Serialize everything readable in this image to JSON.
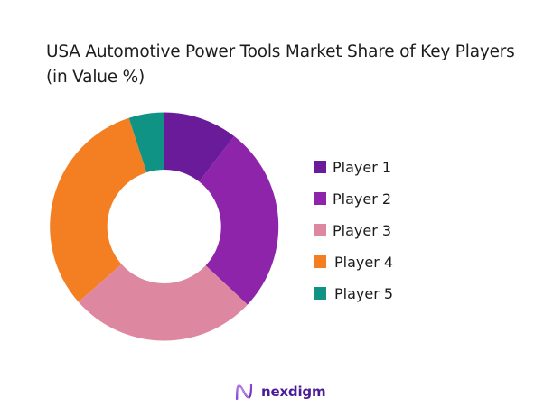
{
  "chart_data": {
    "type": "pie",
    "variant": "donut",
    "title": "USA Automotive Power Tools Market Share of Key Players (in Value %)",
    "categories": [
      "Player 1",
      "Player 2",
      "Player 3",
      "Player 4",
      "Player 5"
    ],
    "values": [
      10.5,
      26.5,
      26.5,
      31.5,
      5
    ],
    "unit": "%",
    "colors": [
      "#6A1B9A",
      "#8E24AA",
      "#DE87A0",
      "#F47F22",
      "#0E9384"
    ],
    "start_angle": "12 o'clock, clockwise",
    "legend_position": "right",
    "data_labels": false
  },
  "title": "USA Automotive Power Tools Market Share of Key Players (in Value %)",
  "legend": [
    {
      "label": "Player 1",
      "color": "#6A1B9A"
    },
    {
      "label": "Player 2",
      "color": "#8E24AA"
    },
    {
      "label": "Player 3",
      "color": "#DE87A0"
    },
    {
      "label": "Player 4",
      "color": "#F47F22"
    },
    {
      "label": "Player 5",
      "color": "#0E9384"
    }
  ],
  "brand": {
    "name": "nexdigm",
    "icon": "nexdigm-logo-icon",
    "color": "#4A1D96"
  }
}
